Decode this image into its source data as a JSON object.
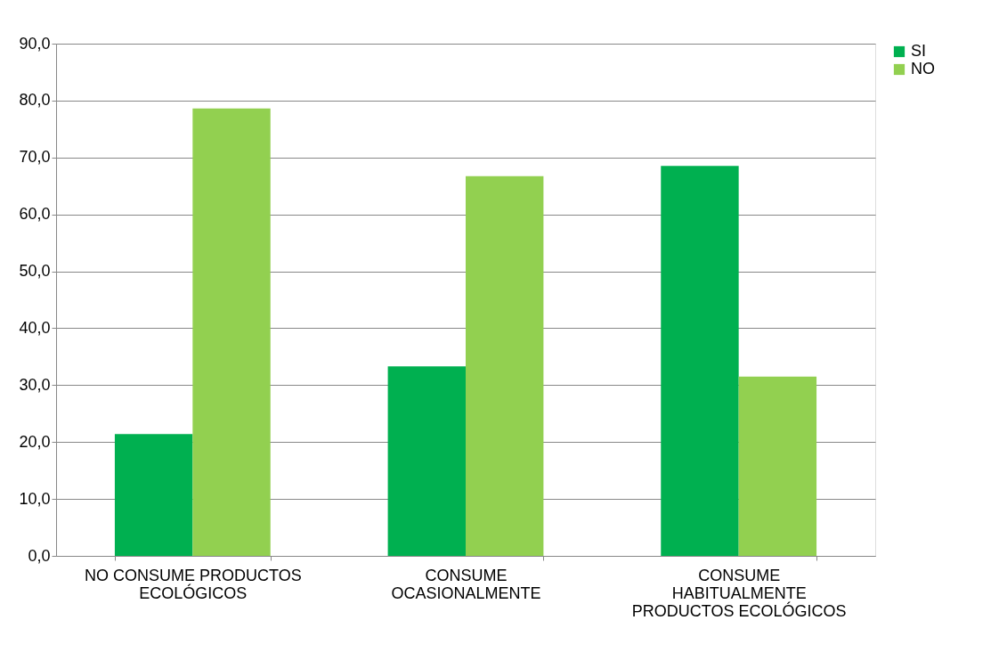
{
  "chart_data": {
    "type": "bar",
    "categories": [
      "NO CONSUME PRODUCTOS ECOLÓGICOS",
      "CONSUME OCASIONALMENTE",
      "CONSUME HABITUALMENTE PRODUCTOS ECOLÓGICOS"
    ],
    "series": [
      {
        "name": "SI",
        "color": "#00b050",
        "values": [
          21.4,
          33.3,
          68.5
        ]
      },
      {
        "name": "NO",
        "color": "#92d050",
        "values": [
          78.6,
          66.7,
          31.5
        ]
      }
    ],
    "ylim": [
      0,
      90
    ],
    "yticks": [
      {
        "value": 0,
        "label": "0,0"
      },
      {
        "value": 10,
        "label": "10,0"
      },
      {
        "value": 20,
        "label": "20,0"
      },
      {
        "value": 30,
        "label": "30,0"
      },
      {
        "value": 40,
        "label": "40,0"
      },
      {
        "value": 50,
        "label": "50,0"
      },
      {
        "value": 60,
        "label": "60,0"
      },
      {
        "value": 70,
        "label": "70,0"
      },
      {
        "value": 80,
        "label": "80,0"
      },
      {
        "value": 90,
        "label": "90,0"
      }
    ],
    "grid": "y",
    "legend": "right"
  }
}
